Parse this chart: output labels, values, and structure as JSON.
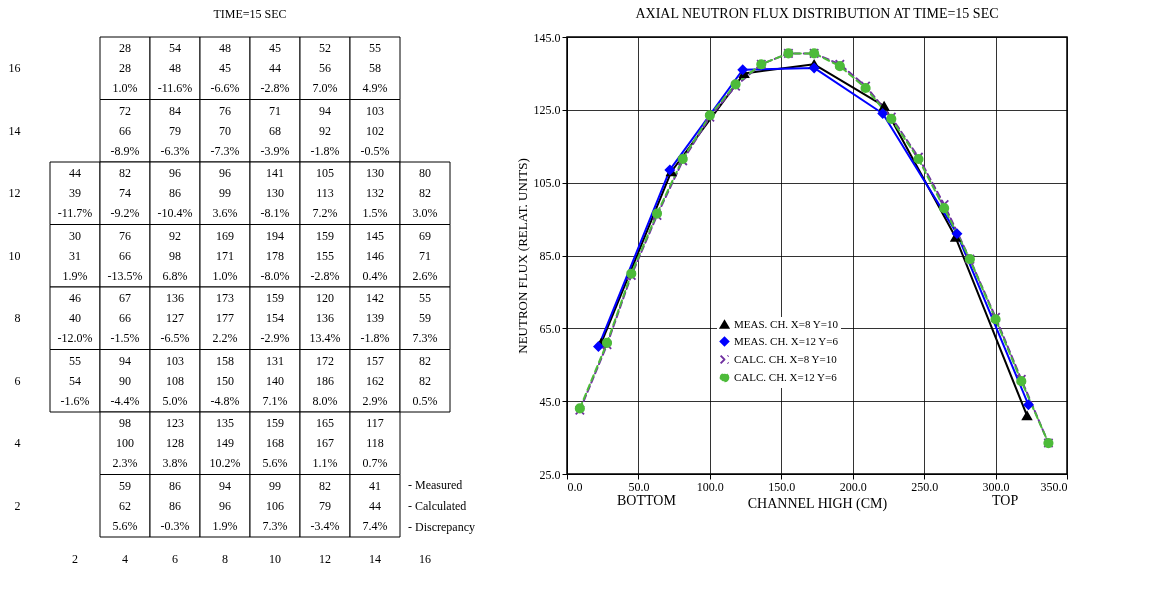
{
  "chart_data": [
    {
      "type": "heatmap",
      "title": "TIME=15 SEC",
      "categories": [
        "2",
        "4",
        "6",
        "8",
        "10",
        "12",
        "14",
        "16"
      ],
      "y_categories": [
        "16",
        "14",
        "12",
        "10",
        "8",
        "6",
        "4",
        "2"
      ],
      "cells": [
        [
          null,
          null,
          null,
          null,
          null,
          null,
          null,
          null
        ],
        [
          null,
          null,
          null,
          null,
          null,
          null,
          null,
          null
        ],
        [
          null,
          null,
          null,
          null,
          null,
          null,
          null,
          null
        ],
        [
          null,
          null,
          null,
          null,
          null,
          null,
          null,
          null
        ],
        [
          null,
          null,
          null,
          null,
          null,
          null,
          null,
          null
        ],
        [
          null,
          null,
          null,
          null,
          null,
          null,
          null,
          null
        ],
        [
          null,
          null,
          null,
          null,
          null,
          null,
          null,
          null
        ],
        [
          null,
          null,
          null,
          null,
          null,
          null,
          null,
          null
        ]
      ],
      "cell_labels": [
        [
          null,
          "28\n28\n1.0%",
          "54\n48\n-11.6%",
          "48\n45\n-6.6%",
          "45\n44\n-2.8%",
          "52\n56\n7.0%",
          "55\n58\n4.9%",
          null
        ],
        [
          null,
          "72\n66\n-8.9%",
          "84\n79\n-6.3%",
          "76\n70\n-7.3%",
          "71\n68\n-3.9%",
          "94\n92\n-1.8%",
          "103\n102\n-0.5%",
          null
        ],
        [
          "44\n39\n-11.7%",
          "82\n74\n-9.2%",
          "96\n86\n-10.4%",
          "96\n99\n3.6%",
          "141\n130\n-8.1%",
          "105\n113\n7.2%",
          "130\n132\n1.5%",
          "80\n82\n3.0%"
        ],
        [
          "30\n31\n1.9%",
          "76\n66\n-13.5%",
          "92\n98\n6.8%",
          "169\n171\n1.0%",
          "194\n178\n-8.0%",
          "159\n155\n-2.8%",
          "145\n146\n0.4%",
          "69\n71\n2.6%"
        ],
        [
          "46\n40\n-12.0%",
          "67\n66\n-1.5%",
          "136\n127\n-6.5%",
          "173\n177\n2.2%",
          "159\n154\n-2.9%",
          "120\n136\n13.4%",
          "142\n139\n-1.8%",
          "55\n59\n7.3%"
        ],
        [
          "55\n54\n-1.6%",
          "94\n90\n-4.4%",
          "103\n108\n5.0%",
          "158\n150\n-4.8%",
          "131\n140\n7.1%",
          "172\n186\n8.0%",
          "157\n162\n2.9%",
          "82\n82\n0.5%"
        ],
        [
          null,
          "98\n100\n2.3%",
          "123\n128\n3.8%",
          "135\n149\n10.2%",
          "159\n168\n5.6%",
          "165\n167\n1.1%",
          "117\n118\n0.7%",
          null
        ],
        [
          null,
          "59\n62\n5.6%",
          "86\n86\n-0.3%",
          "94\n96\n1.9%",
          "99\n106\n7.3%",
          "82\n79\n-3.4%",
          "41\n44\n7.4%",
          null
        ]
      ],
      "annotations": [
        "- Measured",
        "- Calculated",
        "- Discrepancy"
      ]
    },
    {
      "type": "line",
      "title": "AXIAL NEUTRON FLUX DISTRIBUTION AT TIME=15 SEC",
      "xlabel": "CHANNEL HIGH (CM)",
      "ylabel": "NEUTRON FLUX (RELAT. UNITS)",
      "xlim": [
        0,
        350
      ],
      "xticks": [
        {
          "value": 0,
          "label": "0.0"
        },
        {
          "value": 50,
          "label": "50.0"
        },
        {
          "value": 100,
          "label": "100.0"
        },
        {
          "value": 150,
          "label": "150.0"
        },
        {
          "value": 200,
          "label": "200.0"
        },
        {
          "value": 250,
          "label": "250.0"
        },
        {
          "value": 300,
          "label": "300.0"
        },
        {
          "value": 350,
          "label": "350.0"
        }
      ],
      "ylim": [
        25,
        145
      ],
      "yticks": [
        {
          "value": 25,
          "label": "25.0"
        },
        {
          "value": 45,
          "label": "45.0"
        },
        {
          "value": 65,
          "label": "65.0"
        },
        {
          "value": 85,
          "label": "85.0"
        },
        {
          "value": 105,
          "label": "105.0"
        },
        {
          "value": 125,
          "label": "125.0"
        },
        {
          "value": 145,
          "label": "145.0"
        }
      ],
      "grid": true,
      "legend": "bottom left",
      "annotations": [
        "BOTTOM",
        "TOP"
      ],
      "series": [
        {
          "name": "MEAS. CH. X=8 Y=10",
          "color": "#000000",
          "marker": "triangle",
          "line_style": "solid",
          "x": [
            24,
            73,
            124,
            173,
            222,
            272,
            322
          ],
          "values": [
            61,
            108,
            135,
            137.5,
            126,
            90,
            41
          ]
        },
        {
          "name": "MEAS. CH. X=12 Y=6",
          "color": "#0000ff",
          "marker": "diamond",
          "line_style": "solid",
          "x": [
            22,
            72,
            123,
            173,
            221,
            273,
            323
          ],
          "values": [
            60,
            108.5,
            136,
            136.5,
            124,
            91,
            44
          ]
        },
        {
          "name": "CALC. CH. X=8 Y=10",
          "color": "#7030a0",
          "marker": "cross",
          "line_style": "dashed",
          "x": [
            9,
            28,
            45,
            63,
            81,
            100,
            118,
            136,
            155,
            173,
            191,
            209,
            227,
            246,
            264,
            282,
            300,
            318,
            337
          ],
          "values": [
            42.5,
            60.5,
            79.5,
            96,
            111,
            123,
            131.5,
            137.5,
            140.5,
            140.5,
            137.5,
            131.5,
            123,
            112,
            99,
            84,
            68,
            51,
            33.5
          ]
        },
        {
          "name": "CALC. CH. X=12 Y=6",
          "color": "#4dbb3a",
          "marker": "circle",
          "line_style": "dashed",
          "x": [
            9,
            28,
            45,
            63,
            81,
            100,
            118,
            136,
            155,
            173,
            191,
            209,
            227,
            246,
            264,
            282,
            300,
            318,
            337
          ],
          "values": [
            43,
            61,
            80,
            96.5,
            111.5,
            123.5,
            132,
            137.5,
            140.5,
            140.5,
            137,
            131,
            122.5,
            111.5,
            98,
            84,
            67.5,
            50.5,
            33.5
          ]
        }
      ]
    }
  ]
}
